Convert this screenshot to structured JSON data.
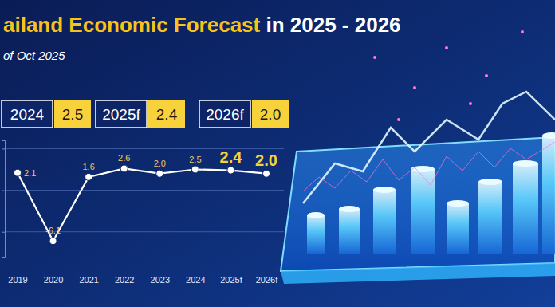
{
  "header": {
    "title": "ailand Economic Forecast in 2025 - 2026",
    "subtitle": "of Oct 2025",
    "boxes": [
      {
        "label": "2024",
        "value": "2.5"
      },
      {
        "label": "2025f",
        "value": "2.4"
      },
      {
        "label": "2026f",
        "value": "2.0"
      }
    ]
  },
  "chart_data": {
    "type": "line",
    "categories": [
      "2019",
      "2020",
      "2021",
      "2022",
      "2023",
      "2024",
      "2025f",
      "2026f"
    ],
    "values": [
      2.1,
      -6.1,
      1.6,
      2.6,
      2.0,
      2.5,
      2.4,
      2.0
    ],
    "value_labels": [
      "2.1",
      "-6.1",
      "1.6",
      "2.6",
      "2.0",
      "2.5",
      "2.4",
      "2.0"
    ],
    "color": "#ffffff",
    "marker": "circle",
    "ylim": [
      -8,
      6
    ],
    "yticks": [
      -5,
      0,
      5
    ],
    "grid": true,
    "data_labels": true,
    "tick_labels": "x"
  }
}
